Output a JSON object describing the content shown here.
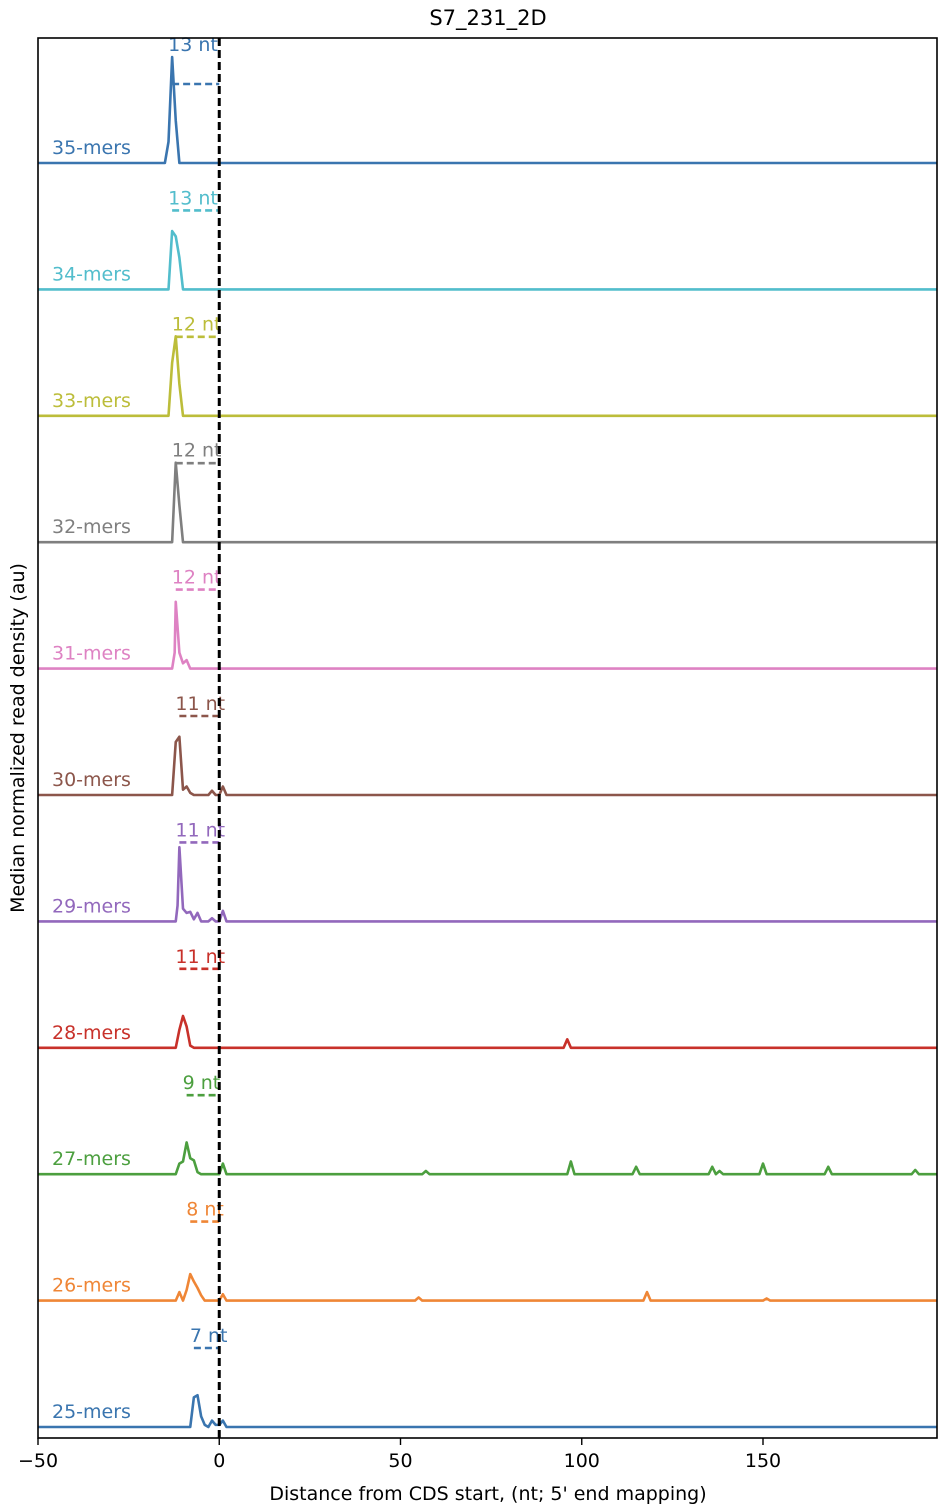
{
  "chart_data": {
    "type": "line",
    "title": "S7_231_2D",
    "xlabel": "Distance from CDS start, (nt; 5' end mapping)",
    "ylabel": "Median normalized read density (au)",
    "xlim": [
      -50,
      198
    ],
    "xticks": [
      -50,
      0,
      50,
      100,
      150
    ],
    "xtick_labels": [
      "−50",
      "0",
      "50",
      "100",
      "150"
    ],
    "start_marker_x": 0,
    "grid": false,
    "series": [
      {
        "name": "35-mers",
        "label": "35-mers",
        "offset": 13,
        "offset_label": "13 nt",
        "color": "#3a75af",
        "points": [
          [
            -50,
            0
          ],
          [
            -15,
            0
          ],
          [
            -14,
            0.2
          ],
          [
            -13,
            1
          ],
          [
            -12,
            0.4
          ],
          [
            -11,
            0
          ],
          [
            198,
            0
          ]
        ]
      },
      {
        "name": "34-mers",
        "label": "34-mers",
        "offset": 13,
        "offset_label": "13 nt",
        "color": "#52bdcc",
        "points": [
          [
            -50,
            0
          ],
          [
            -14,
            0
          ],
          [
            -13,
            0.55
          ],
          [
            -12,
            0.5
          ],
          [
            -11,
            0.3
          ],
          [
            -10,
            0
          ],
          [
            198,
            0
          ]
        ]
      },
      {
        "name": "33-mers",
        "label": "33-mers",
        "offset": 12,
        "offset_label": "12 nt",
        "color": "#bcbd3a",
        "points": [
          [
            -50,
            0
          ],
          [
            -14,
            0
          ],
          [
            -13,
            0.5
          ],
          [
            -12,
            0.75
          ],
          [
            -11,
            0.3
          ],
          [
            -10,
            0
          ],
          [
            198,
            0
          ]
        ]
      },
      {
        "name": "32-mers",
        "label": "32-mers",
        "offset": 12,
        "offset_label": "12 nt",
        "color": "#7f7f7f",
        "points": [
          [
            -50,
            0
          ],
          [
            -13,
            0
          ],
          [
            -12,
            0.75
          ],
          [
            -11,
            0.35
          ],
          [
            -10,
            0
          ],
          [
            198,
            0
          ]
        ]
      },
      {
        "name": "31-mers",
        "label": "31-mers",
        "offset": 12,
        "offset_label": "12 nt",
        "color": "#de82c3",
        "points": [
          [
            -50,
            0
          ],
          [
            -13,
            0
          ],
          [
            -12.3,
            0.15
          ],
          [
            -12,
            0.63
          ],
          [
            -11,
            0.15
          ],
          [
            -10,
            0.05
          ],
          [
            -9,
            0.08
          ],
          [
            -8,
            0
          ],
          [
            198,
            0
          ]
        ]
      },
      {
        "name": "30-mers",
        "label": "30-mers",
        "offset": 11,
        "offset_label": "11 nt",
        "color": "#8c564b",
        "points": [
          [
            -50,
            0
          ],
          [
            -13,
            0
          ],
          [
            -12,
            0.5
          ],
          [
            -11,
            0.55
          ],
          [
            -10,
            0.05
          ],
          [
            -9,
            0.08
          ],
          [
            -8,
            0.02
          ],
          [
            -7,
            0
          ],
          [
            -3,
            0
          ],
          [
            -2,
            0.04
          ],
          [
            -1,
            0
          ],
          [
            0,
            0
          ],
          [
            1,
            0.08
          ],
          [
            2,
            0
          ],
          [
            198,
            0
          ]
        ]
      },
      {
        "name": "29-mers",
        "label": "29-mers",
        "offset": 11,
        "offset_label": "11 nt",
        "color": "#9268bc",
        "points": [
          [
            -50,
            0
          ],
          [
            -12,
            0
          ],
          [
            -11.5,
            0.15
          ],
          [
            -11,
            0.7
          ],
          [
            -10,
            0.12
          ],
          [
            -9,
            0.08
          ],
          [
            -8,
            0.09
          ],
          [
            -7,
            0.02
          ],
          [
            -6,
            0.08
          ],
          [
            -5,
            0
          ],
          [
            -3,
            0
          ],
          [
            -2,
            0.03
          ],
          [
            -1,
            0
          ],
          [
            0,
            0
          ],
          [
            1,
            0.1
          ],
          [
            2,
            0
          ],
          [
            198,
            0
          ]
        ]
      },
      {
        "name": "28-mers",
        "label": "28-mers",
        "offset": 11,
        "offset_label": "11 nt",
        "color": "#c8312a",
        "points": [
          [
            -50,
            0
          ],
          [
            -12,
            0
          ],
          [
            -11,
            0.17
          ],
          [
            -10,
            0.3
          ],
          [
            -9,
            0.2
          ],
          [
            -8,
            0.02
          ],
          [
            -7,
            0
          ],
          [
            95,
            0
          ],
          [
            96,
            0.08
          ],
          [
            97,
            0
          ],
          [
            198,
            0
          ]
        ]
      },
      {
        "name": "27-mers",
        "label": "27-mers",
        "offset": 9,
        "offset_label": "9 nt",
        "color": "#4c9f3f",
        "points": [
          [
            -50,
            0
          ],
          [
            -12,
            0
          ],
          [
            -11,
            0.1
          ],
          [
            -10,
            0.12
          ],
          [
            -9,
            0.3
          ],
          [
            -8,
            0.15
          ],
          [
            -7,
            0.13
          ],
          [
            -6,
            0.02
          ],
          [
            -5,
            0
          ],
          [
            0,
            0
          ],
          [
            1,
            0.1
          ],
          [
            2,
            0
          ],
          [
            56,
            0
          ],
          [
            57,
            0.03
          ],
          [
            58,
            0
          ],
          [
            96,
            0
          ],
          [
            97,
            0.12
          ],
          [
            98,
            0
          ],
          [
            114,
            0
          ],
          [
            115,
            0.07
          ],
          [
            116,
            0
          ],
          [
            135,
            0
          ],
          [
            136,
            0.07
          ],
          [
            137,
            0
          ],
          [
            138,
            0.03
          ],
          [
            139,
            0
          ],
          [
            149,
            0
          ],
          [
            150,
            0.1
          ],
          [
            151,
            0
          ],
          [
            167,
            0
          ],
          [
            168,
            0.07
          ],
          [
            169,
            0
          ],
          [
            191,
            0
          ],
          [
            192,
            0.04
          ],
          [
            193,
            0
          ],
          [
            198,
            0
          ]
        ]
      },
      {
        "name": "26-mers",
        "label": "26-mers",
        "offset": 8,
        "offset_label": "8 nt",
        "color": "#ef8636",
        "points": [
          [
            -50,
            0
          ],
          [
            -12,
            0
          ],
          [
            -11,
            0.08
          ],
          [
            -10,
            0
          ],
          [
            -9,
            0.1
          ],
          [
            -8,
            0.25
          ],
          [
            -7,
            0.18
          ],
          [
            -6,
            0.12
          ],
          [
            -5,
            0.05
          ],
          [
            -4,
            0
          ],
          [
            0,
            0
          ],
          [
            1,
            0.06
          ],
          [
            2,
            0
          ],
          [
            54,
            0
          ],
          [
            55,
            0.03
          ],
          [
            56,
            0
          ],
          [
            117,
            0
          ],
          [
            118,
            0.08
          ],
          [
            119,
            0
          ],
          [
            150,
            0
          ],
          [
            151,
            0.02
          ],
          [
            152,
            0
          ],
          [
            198,
            0
          ]
        ]
      },
      {
        "name": "25-mers",
        "label": "25-mers",
        "offset": 7,
        "offset_label": "7 nt",
        "color": "#3a75af",
        "points": [
          [
            -50,
            0
          ],
          [
            -8,
            0
          ],
          [
            -7,
            0.28
          ],
          [
            -6,
            0.3
          ],
          [
            -5,
            0.1
          ],
          [
            -4,
            0.02
          ],
          [
            -3,
            0
          ],
          [
            -2,
            0.06
          ],
          [
            -1,
            0.02
          ],
          [
            0,
            0.02
          ],
          [
            1,
            0.06
          ],
          [
            2,
            0
          ],
          [
            198,
            0
          ]
        ]
      }
    ]
  }
}
